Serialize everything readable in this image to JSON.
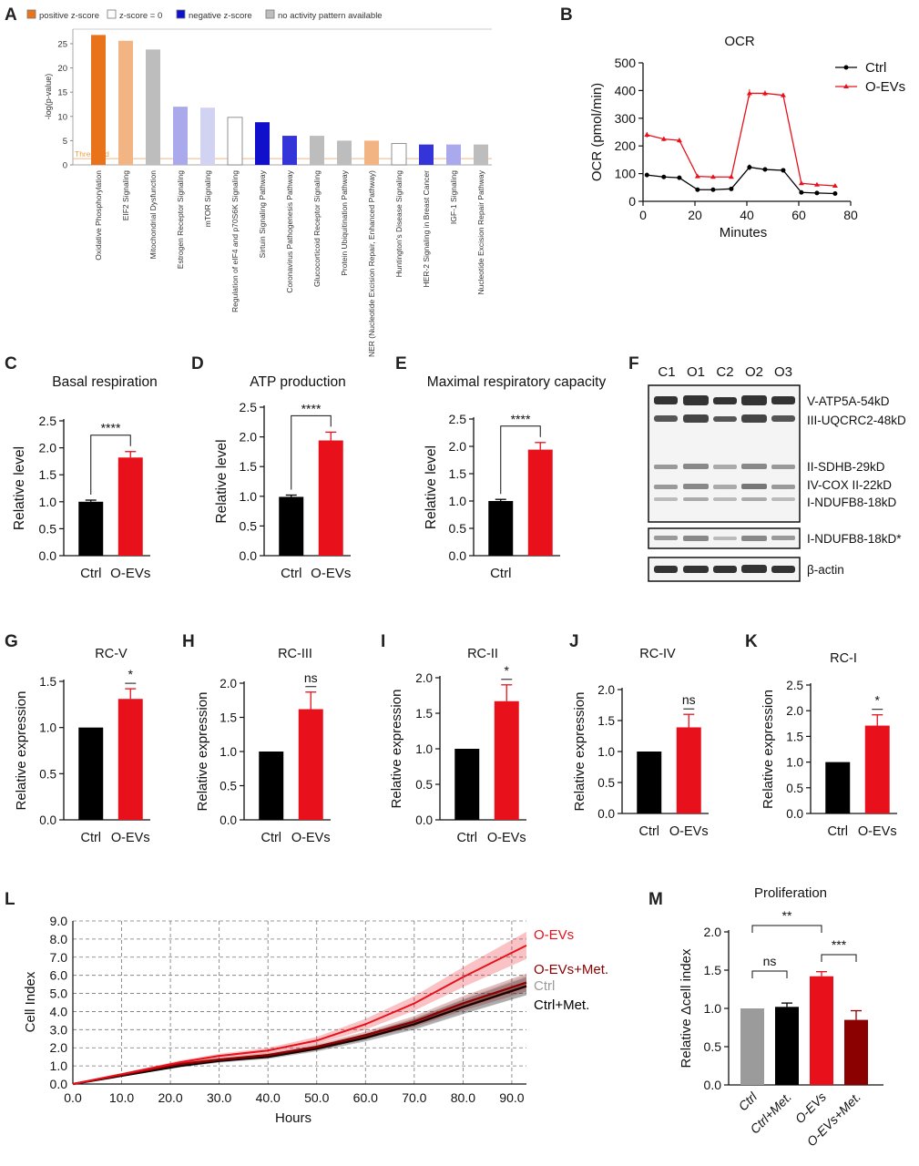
{
  "panel_letters": {
    "A": "A",
    "B": "B",
    "C": "C",
    "D": "D",
    "E": "E",
    "F": "F",
    "G": "G",
    "H": "H",
    "I": "I",
    "J": "J",
    "K": "K",
    "L": "L",
    "M": "M"
  },
  "colors": {
    "red": "#e8101a",
    "black": "#000000",
    "dark_red": "#8b0000",
    "gray": "#9b9b9b",
    "orange": "#e8731a",
    "light_orange": "#f2b483",
    "blue": "#1010cc",
    "light_blue": "#a9a9ec",
    "gray_bar": "#bdbdbd"
  },
  "chart_data": [
    {
      "id": "A",
      "type": "bar",
      "ylabel": "-log(p-value)",
      "ylim": [
        0,
        28
      ],
      "yticks": [
        0,
        5,
        10,
        15,
        20,
        25
      ],
      "threshold_label": "Threshold",
      "threshold_value": 1.3,
      "legend": [
        {
          "label": "positive z-score",
          "color": "#e8731a"
        },
        {
          "label": "z-score = 0",
          "color": "#ffffff"
        },
        {
          "label": "negative z-score",
          "color": "#1010cc"
        },
        {
          "label": "no activity pattern available",
          "color": "#bdbdbd"
        }
      ],
      "bars": [
        {
          "label": "Oxidative Phosphorylation",
          "value": 26.8,
          "color": "#e8731a"
        },
        {
          "label": "EIF2 Signaling",
          "value": 25.6,
          "color": "#f2b483"
        },
        {
          "label": "Mitochondrial Dysfunction",
          "value": 23.8,
          "color": "#bdbdbd"
        },
        {
          "label": "Estrogen Receptor Signaling",
          "value": 12.0,
          "color": "#a9a9ec"
        },
        {
          "label": "mTOR Signaling",
          "value": 11.8,
          "color": "#d2d2f3"
        },
        {
          "label": "Regulation of eIF4 and p70S6K Signaling",
          "value": 9.8,
          "color": "#ffffff"
        },
        {
          "label": "Sirtuin Signaling Pathway",
          "value": 8.8,
          "color": "#1010cc"
        },
        {
          "label": "Coronavirus Pathogenesis Pathway",
          "value": 6.0,
          "color": "#3434d8"
        },
        {
          "label": "Glucocorticoid Receptor Signaling",
          "value": 6.0,
          "color": "#bdbdbd"
        },
        {
          "label": "Protein Ubiquitination Pathway",
          "value": 5.0,
          "color": "#bdbdbd"
        },
        {
          "label": "NER (Nucleotide Excision Repair, Enhanced Pathway)",
          "value": 5.0,
          "color": "#f2b483"
        },
        {
          "label": "Huntington's Disease Signaling",
          "value": 4.4,
          "color": "#ffffff"
        },
        {
          "label": "HER-2 Signaling in Breast Cancer",
          "value": 4.2,
          "color": "#3434d8"
        },
        {
          "label": "IGF-1 Signaling",
          "value": 4.2,
          "color": "#a9a9ec"
        },
        {
          "label": "Nucleotide Excision Repair Pathway",
          "value": 4.2,
          "color": "#bdbdbd"
        }
      ]
    },
    {
      "id": "B",
      "type": "line",
      "title": "OCR",
      "xlabel": "Minutes",
      "ylabel": "OCR (pmol/min)",
      "xlim": [
        0,
        80
      ],
      "ylim": [
        0,
        500
      ],
      "xticks": [
        0,
        20,
        40,
        60,
        80
      ],
      "yticks": [
        0,
        100,
        200,
        300,
        400,
        500
      ],
      "series": [
        {
          "name": "Ctrl",
          "color": "#000000",
          "marker": "circle",
          "x": [
            1.5,
            8,
            14,
            21,
            27,
            34,
            41,
            47,
            54,
            61,
            67,
            74
          ],
          "y": [
            95,
            88,
            85,
            42,
            42,
            45,
            123,
            115,
            112,
            32,
            30,
            28
          ],
          "err": [
            8,
            6,
            6,
            3,
            3,
            3,
            10,
            8,
            8,
            3,
            3,
            3
          ]
        },
        {
          "name": "O-EVs",
          "color": "#e8101a",
          "marker": "triangle",
          "x": [
            1.5,
            8,
            14,
            21,
            27,
            34,
            41,
            47,
            54,
            61,
            67,
            74
          ],
          "y": [
            240,
            225,
            220,
            90,
            88,
            88,
            390,
            390,
            383,
            65,
            60,
            56
          ],
          "err": [
            10,
            8,
            8,
            5,
            5,
            5,
            15,
            10,
            8,
            4,
            4,
            4
          ]
        }
      ]
    },
    {
      "id": "C",
      "type": "bar",
      "title": "Basal respiration",
      "ylabel": "Relative level",
      "ylim": [
        0,
        2.5
      ],
      "yticks": [
        "0.0",
        "0.5",
        "1.0",
        "1.5",
        "2.0",
        "2.5"
      ],
      "categories": [
        "Ctrl",
        "O-EVs"
      ],
      "values": [
        1.0,
        1.82
      ],
      "errors": [
        0.03,
        0.11
      ],
      "significance": "****"
    },
    {
      "id": "D",
      "type": "bar",
      "title": "ATP production",
      "ylabel": "Relative level",
      "ylim": [
        0,
        2.5
      ],
      "yticks": [
        "0.0",
        "0.5",
        "1.0",
        "1.5",
        "2.0",
        "2.5"
      ],
      "categories": [
        "Ctrl",
        "O-EVs"
      ],
      "values": [
        0.99,
        1.94
      ],
      "errors": [
        0.03,
        0.14
      ],
      "significance": "****"
    },
    {
      "id": "E",
      "type": "bar",
      "title": "Maximal respiratory capacity",
      "ylabel": "Relative level",
      "ylim": [
        0,
        2.5
      ],
      "yticks": [
        "0.0",
        "0.5",
        "1.0",
        "1.5",
        "2.0",
        "2.5"
      ],
      "categories": [
        "Ctrl",
        ""
      ],
      "values": [
        1.0,
        1.94
      ],
      "errors": [
        0.03,
        0.13
      ],
      "significance": "****"
    },
    {
      "id": "G",
      "type": "bar",
      "title": "RC-V",
      "ylabel": "Relative expression",
      "ylim": [
        0,
        1.5
      ],
      "yticks": [
        "0.0",
        "0.5",
        "1.0",
        "1.5"
      ],
      "categories": [
        "Ctrl",
        "O-EVs"
      ],
      "values": [
        1.0,
        1.31
      ],
      "errors": [
        0,
        0.11
      ],
      "significance": "*"
    },
    {
      "id": "H",
      "type": "bar",
      "title": "RC-III",
      "ylabel": "Relative expression",
      "ylim": [
        0,
        2.0
      ],
      "yticks": [
        "0.0",
        "0.5",
        "1.0",
        "1.5",
        "2.0"
      ],
      "categories": [
        "Ctrl",
        "O-EVs"
      ],
      "values": [
        1.0,
        1.62
      ],
      "errors": [
        0,
        0.25
      ],
      "significance": "ns"
    },
    {
      "id": "I",
      "type": "bar",
      "title": "RC-II",
      "ylabel": "Relative expression",
      "ylim": [
        0,
        2.0
      ],
      "yticks": [
        "0.0",
        "0.5",
        "1.0",
        "1.5",
        "2.0"
      ],
      "categories": [
        "Ctrl",
        "O-EVs"
      ],
      "values": [
        1.0,
        1.67
      ],
      "errors": [
        0,
        0.23
      ],
      "significance": "*"
    },
    {
      "id": "J",
      "type": "bar",
      "title": "RC-IV",
      "ylabel": "Relative expression",
      "ylim": [
        0,
        2.0
      ],
      "yticks": [
        "0.0",
        "0.5",
        "1.0",
        "1.5",
        "2.0"
      ],
      "categories": [
        "Ctrl",
        "O-EVs"
      ],
      "values": [
        1.0,
        1.39
      ],
      "errors": [
        0,
        0.21
      ],
      "significance": "ns"
    },
    {
      "id": "K",
      "type": "bar",
      "title": "RC-I",
      "ylabel": "Relative expression",
      "ylim": [
        0,
        2.5
      ],
      "yticks": [
        "0.0",
        "0.5",
        "1.0",
        "1.5",
        "2.0",
        "2.5"
      ],
      "categories": [
        "Ctrl",
        "O-EVs"
      ],
      "values": [
        1.0,
        1.71
      ],
      "errors": [
        0,
        0.21
      ],
      "significance": "*"
    },
    {
      "id": "L",
      "type": "line",
      "xlabel": "Hours",
      "ylabel": "Cell Index",
      "xlim": [
        0,
        93
      ],
      "ylim": [
        0,
        9
      ],
      "xticks": [
        "0.0",
        "10.0",
        "20.0",
        "30.0",
        "40.0",
        "50.0",
        "60.0",
        "70.0",
        "80.0",
        "90.0"
      ],
      "yticks": [
        "0.0",
        "1.0",
        "2.0",
        "3.0",
        "4.0",
        "5.0",
        "6.0",
        "7.0",
        "8.0",
        "9.0"
      ],
      "series": [
        {
          "name": "O-EVs",
          "color": "#e8101a",
          "x": [
            0,
            22,
            30,
            40,
            50,
            60,
            70,
            80,
            93
          ],
          "y": [
            0,
            1.2,
            1.55,
            1.85,
            2.4,
            3.3,
            4.45,
            5.9,
            7.65
          ],
          "err": [
            0,
            0.1,
            0.12,
            0.15,
            0.2,
            0.3,
            0.4,
            0.55,
            0.75
          ]
        },
        {
          "name": "O-EVs+Met.",
          "color": "#8b0000",
          "x": [
            0,
            22,
            30,
            40,
            50,
            60,
            70,
            80,
            93
          ],
          "y": [
            0,
            1.1,
            1.35,
            1.6,
            2.05,
            2.7,
            3.45,
            4.45,
            5.6
          ],
          "err": [
            0,
            0.08,
            0.1,
            0.12,
            0.15,
            0.2,
            0.3,
            0.4,
            0.5
          ]
        },
        {
          "name": "Ctrl",
          "color": "#9b9b9b",
          "x": [
            0,
            22,
            30,
            40,
            50,
            60,
            70,
            80,
            93
          ],
          "y": [
            0,
            1.05,
            1.3,
            1.55,
            2.0,
            2.6,
            3.35,
            4.3,
            5.45
          ],
          "err": [
            0,
            0.08,
            0.1,
            0.12,
            0.15,
            0.2,
            0.3,
            0.4,
            0.55
          ]
        },
        {
          "name": "Ctrl+Met.",
          "color": "#000000",
          "x": [
            0,
            22,
            30,
            40,
            50,
            60,
            70,
            80,
            93
          ],
          "y": [
            0,
            1.0,
            1.28,
            1.5,
            1.95,
            2.55,
            3.3,
            4.25,
            5.4
          ],
          "err": [
            0,
            0.08,
            0.1,
            0.12,
            0.15,
            0.2,
            0.3,
            0.4,
            0.5
          ]
        }
      ]
    },
    {
      "id": "M",
      "type": "bar",
      "title": "Proliferation",
      "ylabel": "Relative Δcell index",
      "ylim": [
        0,
        2.0
      ],
      "yticks": [
        "0.0",
        "0.5",
        "1.0",
        "1.5",
        "2.0"
      ],
      "categories": [
        "Ctrl",
        "Ctrl+Met.",
        "O-EVs",
        "O-EVs+Met."
      ],
      "values": [
        1.0,
        1.02,
        1.42,
        0.85
      ],
      "errors": [
        0,
        0.05,
        0.06,
        0.12
      ],
      "colors": [
        "#9b9b9b",
        "#000000",
        "#e8101a",
        "#8b0000"
      ],
      "comparisons": [
        {
          "from": 0,
          "to": 1,
          "label": "ns"
        },
        {
          "from": 0,
          "to": 2,
          "label": "**"
        },
        {
          "from": 2,
          "to": 3,
          "label": "***"
        }
      ]
    }
  ],
  "blot": {
    "id": "F",
    "lanes": [
      "C1",
      "O1",
      "C2",
      "O2",
      "O3"
    ],
    "band_labels": [
      "V-ATP5A-54kD",
      "III-UQCRC2-48kD",
      "II-SDHB-29kD",
      "IV-COX II-22kD",
      "I-NDUFB8-18kD"
    ],
    "band2_label": "I-NDUFB8-18kD*",
    "band3_label": "β-actin"
  }
}
